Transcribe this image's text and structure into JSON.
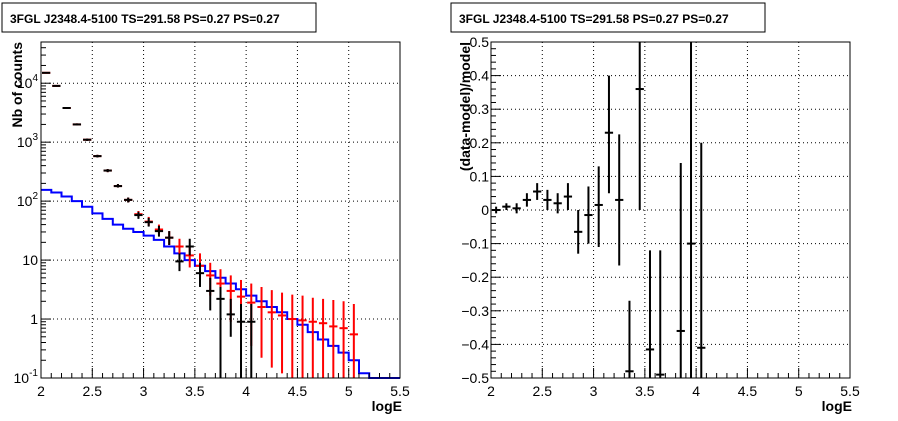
{
  "chart_data": [
    {
      "type": "scatter",
      "title": "3FGL J2348.4-5100 TS=291.58 PS=0.27 PS=0.27",
      "xlabel": "logE",
      "ylabel": "Nb of counts",
      "xlim": [
        2,
        5.5
      ],
      "ylim": [
        0.1,
        50000
      ],
      "ylog": true,
      "grid": true,
      "xticks": [
        "2",
        "2.5",
        "3",
        "3.5",
        "4",
        "4.5",
        "5",
        "5.5"
      ],
      "yticks": [
        {
          "v": 0.1,
          "base": "10",
          "exp": "-1"
        },
        {
          "v": 1,
          "base": "1",
          "exp": ""
        },
        {
          "v": 10,
          "base": "10",
          "exp": ""
        },
        {
          "v": 100,
          "base": "10",
          "exp": "2"
        },
        {
          "v": 1000,
          "base": "10",
          "exp": "3"
        },
        {
          "v": 10000,
          "base": "10",
          "exp": "4"
        }
      ],
      "series": [
        {
          "kind": "hist",
          "color": "#ff0000",
          "x": [
            2.05,
            2.15,
            2.25,
            2.35,
            2.45,
            2.55,
            2.65,
            2.75,
            2.85,
            2.95,
            3.05,
            3.15,
            3.25,
            3.35,
            3.45,
            3.55,
            3.65,
            3.75,
            3.85,
            3.95,
            4.05,
            4.15,
            4.25,
            4.35,
            4.45,
            4.55,
            4.65,
            4.75,
            4.85,
            4.95,
            5.05
          ],
          "y": [
            15000,
            9000,
            3800,
            2000,
            1100,
            580,
            330,
            180,
            105,
            60,
            45,
            33,
            24,
            17,
            12,
            8,
            5.5,
            4,
            3,
            2.4,
            1.9,
            1.6,
            1.3,
            1.15,
            1,
            0.95,
            0.9,
            0.85,
            0.75,
            0.7,
            0.55
          ],
          "lo": [
            14700,
            8800,
            3700,
            1930,
            1050,
            550,
            310,
            170,
            95,
            52,
            38,
            27,
            18,
            12,
            7.5,
            4.5,
            2.5,
            1.6,
            0.9,
            0.5,
            0.35,
            0.22,
            0.15,
            0.12,
            0.1,
            0.1,
            0.1,
            0.1,
            0.1,
            0.1,
            0.1
          ],
          "hi": [
            15300,
            9200,
            3900,
            2080,
            1150,
            610,
            350,
            195,
            115,
            68,
            54,
            40,
            31,
            23,
            17,
            13,
            9,
            7,
            5.5,
            4.6,
            4,
            3.5,
            3.1,
            2.8,
            2.6,
            2.5,
            2.3,
            2.2,
            2.1,
            2,
            1.8
          ]
        },
        {
          "kind": "hist",
          "color": "#000000",
          "x": [
            2.05,
            2.15,
            2.25,
            2.35,
            2.45,
            2.55,
            2.65,
            2.75,
            2.85,
            2.95,
            3.05,
            3.15,
            3.25,
            3.35,
            3.45,
            3.55,
            3.65,
            3.75,
            3.85,
            3.95,
            4.05
          ],
          "y": [
            15000,
            9000,
            3800,
            2000,
            1100,
            580,
            330,
            180,
            105,
            58,
            44,
            31,
            24,
            9.5,
            17,
            6,
            3,
            2.2,
            1.2,
            0.9,
            0.9
          ],
          "lo": [
            14700,
            8800,
            3700,
            1930,
            1050,
            550,
            310,
            170,
            95,
            50,
            37,
            25,
            18,
            6.5,
            12,
            3.5,
            1.4,
            0.1,
            0.5,
            0.1,
            0.1
          ],
          "hi": [
            15300,
            9200,
            3900,
            2080,
            1150,
            610,
            350,
            195,
            115,
            66,
            52,
            38,
            31,
            13,
            23,
            9,
            5,
            3.5,
            2.2,
            1.8,
            1.8
          ]
        },
        {
          "kind": "step",
          "color": "#0000ff",
          "edges": [
            2.0,
            2.1,
            2.2,
            2.3,
            2.4,
            2.5,
            2.6,
            2.7,
            2.8,
            2.9,
            3.0,
            3.1,
            3.2,
            3.3,
            3.4,
            3.5,
            3.6,
            3.7,
            3.8,
            3.9,
            4.0,
            4.1,
            4.2,
            4.3,
            4.4,
            4.5,
            4.6,
            4.7,
            4.8,
            4.9,
            5.0,
            5.1,
            5.2,
            5.5
          ],
          "y": [
            155,
            140,
            120,
            100,
            80,
            62,
            50,
            40,
            34,
            30,
            26,
            22,
            17,
            13,
            10,
            8,
            6.5,
            5,
            4,
            3.2,
            2.5,
            2,
            1.6,
            1.3,
            1,
            0.8,
            0.6,
            0.45,
            0.35,
            0.27,
            0.2,
            0.12,
            0.1
          ]
        }
      ]
    },
    {
      "type": "scatter",
      "title": "3FGL J2348.4-5100 TS=291.58 PS=0.27 PS=0.27",
      "xlabel": "logE",
      "ylabel": "(data-model)/model",
      "xlim": [
        2,
        5.5
      ],
      "ylim": [
        -0.5,
        0.5
      ],
      "grid": true,
      "xticks": [
        "2",
        "2.5",
        "3",
        "3.5",
        "4",
        "4.5",
        "5",
        "5.5"
      ],
      "yticks": [
        "−0.5",
        "−0.4",
        "−0.3",
        "−0.2",
        "−0.1",
        "0",
        "0.1",
        "0.2",
        "0.3",
        "0.4",
        "0.5"
      ],
      "points": [
        {
          "x": 2.05,
          "y": 0.0,
          "lo": -0.01,
          "hi": 0.01
        },
        {
          "x": 2.15,
          "y": 0.01,
          "lo": 0.0,
          "hi": 0.02
        },
        {
          "x": 2.25,
          "y": 0.005,
          "lo": -0.01,
          "hi": 0.02
        },
        {
          "x": 2.35,
          "y": 0.03,
          "lo": 0.01,
          "hi": 0.05
        },
        {
          "x": 2.45,
          "y": 0.055,
          "lo": 0.03,
          "hi": 0.08
        },
        {
          "x": 2.55,
          "y": 0.03,
          "lo": 0.0,
          "hi": 0.06
        },
        {
          "x": 2.65,
          "y": 0.02,
          "lo": -0.01,
          "hi": 0.05
        },
        {
          "x": 2.75,
          "y": 0.04,
          "lo": 0.0,
          "hi": 0.08
        },
        {
          "x": 2.85,
          "y": -0.065,
          "lo": -0.13,
          "hi": 0.0
        },
        {
          "x": 2.95,
          "y": -0.015,
          "lo": -0.1,
          "hi": 0.07
        },
        {
          "x": 3.05,
          "y": 0.015,
          "lo": -0.11,
          "hi": 0.13
        },
        {
          "x": 3.15,
          "y": 0.23,
          "lo": 0.05,
          "hi": 0.4
        },
        {
          "x": 3.25,
          "y": 0.03,
          "lo": -0.165,
          "hi": 0.225
        },
        {
          "x": 3.35,
          "y": -0.48,
          "lo": -0.5,
          "hi": -0.27
        },
        {
          "x": 3.45,
          "y": 0.36,
          "lo": 0.0,
          "hi": 0.5
        },
        {
          "x": 3.55,
          "y": -0.415,
          "lo": -0.5,
          "hi": -0.12
        },
        {
          "x": 3.65,
          "y": -0.49,
          "lo": -0.5,
          "hi": -0.12
        },
        {
          "x": 3.85,
          "y": -0.36,
          "lo": -0.5,
          "hi": 0.14
        },
        {
          "x": 3.95,
          "y": -0.1,
          "lo": -0.5,
          "hi": 0.5
        },
        {
          "x": 4.05,
          "y": -0.41,
          "lo": -0.5,
          "hi": 0.2
        }
      ]
    }
  ]
}
